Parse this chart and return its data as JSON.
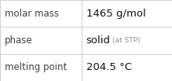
{
  "rows": [
    {
      "label": "molar mass",
      "value": "1465 g/mol",
      "value_extra": null
    },
    {
      "label": "phase",
      "value": "solid",
      "value_extra": "(at STP)"
    },
    {
      "label": "melting point",
      "value": "204.5 °C",
      "value_extra": null
    }
  ],
  "background_color": "#ffffff",
  "border_color": "#c8c8c8",
  "label_color": "#404040",
  "value_color": "#111111",
  "extra_color": "#909090",
  "label_fontsize": 8.5,
  "value_fontsize": 9.5,
  "extra_fontsize": 6.5,
  "col_split": 0.475,
  "figwidth": 2.19,
  "figheight": 1.03,
  "dpi": 100
}
